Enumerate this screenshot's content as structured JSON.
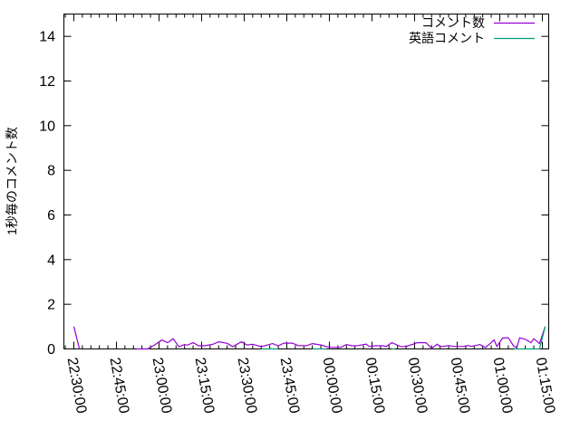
{
  "chart_data": {
    "type": "line",
    "title": "",
    "xlabel": "",
    "ylabel": "1秒毎のコメント数",
    "xlim": [
      "22:26:30",
      "01:17:15"
    ],
    "ylim": [
      0,
      15
    ],
    "yticks": [
      "0",
      "2",
      "4",
      "6",
      "8",
      "10",
      "12",
      "14"
    ],
    "xticks": [
      "22:30:00",
      "22:45:00",
      "23:00:00",
      "23:15:00",
      "23:30:00",
      "23:45:00",
      "00:00:00",
      "00:15:00",
      "00:30:00",
      "00:45:00",
      "01:00:00",
      "01:15:00"
    ],
    "grid": false,
    "legend_position": "top-right",
    "series": [
      {
        "name": "コメント数",
        "color": "#9400d3",
        "points": [
          [
            "22:30",
            1.0
          ],
          [
            "22:32",
            0
          ],
          null,
          [
            "22:52",
            0
          ],
          [
            "22:56",
            0
          ],
          [
            "22:58",
            0.14
          ],
          [
            "23:01",
            0.4
          ],
          [
            "23:03",
            0.28
          ],
          [
            "23:05",
            0.46
          ],
          [
            "23:07",
            0.1
          ],
          [
            "23:09",
            0.2
          ],
          [
            "23:10",
            0.17
          ],
          [
            "23:12",
            0.28
          ],
          [
            "23:14",
            0.14
          ],
          [
            "23:16",
            0.14
          ],
          [
            "23:19",
            0.21
          ],
          [
            "23:21",
            0.32
          ],
          [
            "23:24",
            0.25
          ],
          [
            "23:26",
            0.1
          ],
          [
            "23:29",
            0.32
          ],
          [
            "23:31",
            0.18
          ],
          [
            "23:33",
            0.21
          ],
          [
            "23:36",
            0.1
          ],
          [
            "23:40",
            0.24
          ],
          [
            "23:42",
            0.14
          ],
          [
            "23:44",
            0.26
          ],
          [
            "23:47",
            0.26
          ],
          [
            "23:49",
            0.15
          ],
          [
            "23:52",
            0.15
          ],
          [
            "23:54",
            0.24
          ],
          [
            "23:57",
            0.18
          ],
          [
            "23:59",
            0.1
          ],
          [
            "00:01",
            0.07
          ],
          [
            "00:04",
            0.07
          ],
          [
            "00:06",
            0.2
          ],
          [
            "00:08",
            0.14
          ],
          [
            "00:10",
            0.15
          ],
          [
            "00:13",
            0.22
          ],
          [
            "00:14",
            0.11
          ],
          [
            "00:16",
            0.14
          ],
          [
            "00:19",
            0.14
          ],
          [
            "00:20",
            0.11
          ],
          [
            "00:22",
            0.28
          ],
          [
            "00:25",
            0.11
          ],
          [
            "00:27",
            0.11
          ],
          [
            "00:31",
            0.28
          ],
          [
            "00:34",
            0.28
          ],
          [
            "00:36",
            0.03
          ],
          [
            "00:38",
            0.21
          ],
          [
            "00:39",
            0.1
          ],
          [
            "00:42",
            0.15
          ],
          [
            "00:44",
            0.11
          ],
          [
            "00:47",
            0.11
          ],
          [
            "00:49",
            0.15
          ],
          [
            "00:50",
            0.11
          ],
          [
            "00:53",
            0.2
          ],
          [
            "00:55",
            0.06
          ],
          [
            "00:58",
            0.4
          ],
          [
            "00:59",
            0.11
          ],
          [
            "01:01",
            0.49
          ],
          [
            "01:03",
            0.5
          ],
          [
            "01:05",
            0.11
          ],
          [
            "01:06",
            0.06
          ],
          [
            "01:07",
            0.5
          ],
          [
            "01:09",
            0.43
          ],
          [
            "01:11",
            0.28
          ],
          [
            "01:12",
            0.46
          ],
          [
            "01:14",
            0.24
          ],
          [
            "01:16",
            1.0
          ]
        ]
      },
      {
        "name": "英語コメント",
        "color": "#009e73",
        "points": [
          [
            "23:36",
            0
          ],
          [
            "23:42",
            0
          ],
          null,
          [
            "23:54",
            0
          ],
          [
            "23:59",
            0
          ],
          null,
          [
            "00:22",
            0
          ],
          [
            "00:23",
            0
          ],
          null,
          [
            "01:05",
            0
          ],
          [
            "01:12",
            0
          ],
          [
            "01:14",
            0
          ],
          [
            "01:16",
            1.0
          ]
        ]
      }
    ]
  }
}
